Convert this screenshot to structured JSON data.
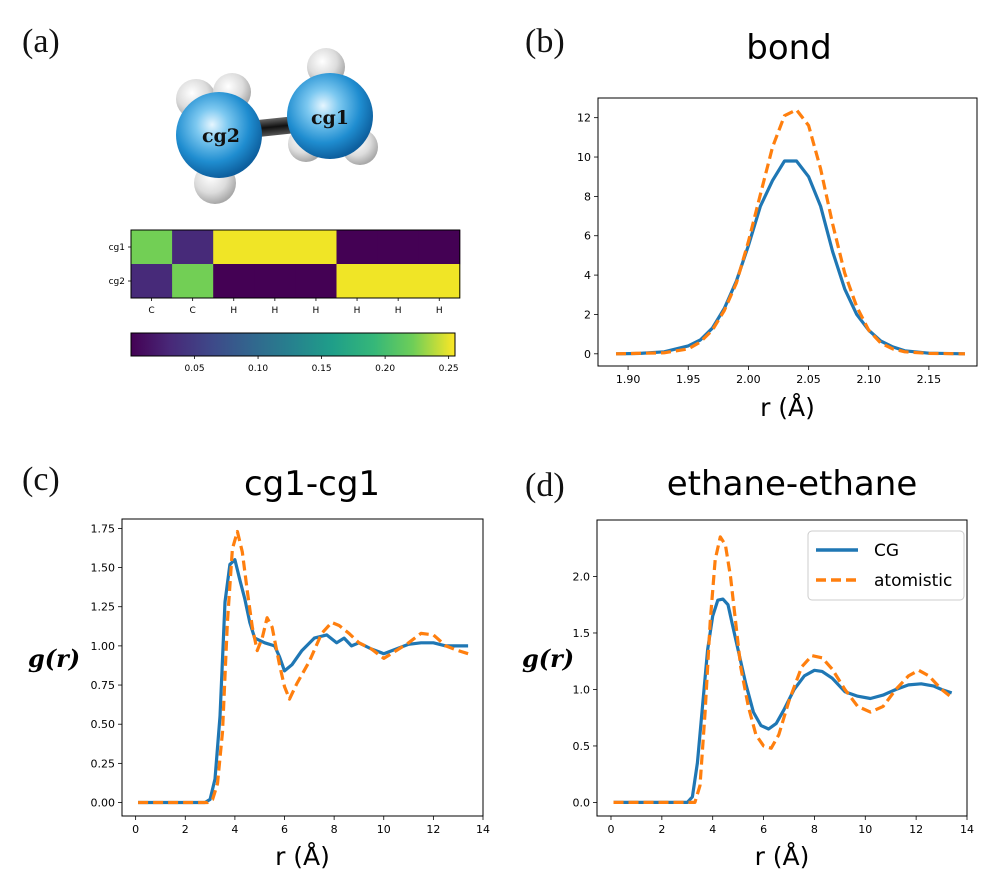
{
  "panels": {
    "a": "(a)",
    "b": "(b)",
    "c": "(c)",
    "d": "(d)"
  },
  "molecule": {
    "atom1": "cg1",
    "atom2": "cg2"
  },
  "heatmap": {
    "rows": [
      "cg1",
      "cg2"
    ],
    "cols": [
      "C",
      "C",
      "H",
      "H",
      "H",
      "H",
      "H",
      "H"
    ],
    "values": [
      [
        0.2,
        0.03,
        0.25,
        0.25,
        0.25,
        0.0,
        0.0,
        0.0
      ],
      [
        0.03,
        0.2,
        0.0,
        0.0,
        0.0,
        0.25,
        0.25,
        0.25
      ]
    ],
    "colorbar_ticks": [
      "0.05",
      "0.10",
      "0.15",
      "0.20",
      "0.25"
    ],
    "colorbar_range": [
      0.0,
      0.255
    ]
  },
  "colors": {
    "cg": "#1f77b4",
    "atomistic": "#ff7f0e"
  },
  "legend": {
    "cg": "CG",
    "atomistic": "atomistic"
  },
  "chart_data": [
    {
      "id": "bond",
      "type": "line",
      "title": "bond",
      "xlabel": "r (Å)",
      "ylabel": "",
      "xlim": [
        1.875,
        2.19
      ],
      "ylim": [
        -0.62,
        13.0
      ],
      "xticks": [
        "1.90",
        "1.95",
        "2.00",
        "2.05",
        "2.10",
        "2.15"
      ],
      "yticks": [
        "0",
        "2",
        "4",
        "6",
        "8",
        "10",
        "12"
      ],
      "series": [
        {
          "name": "CG",
          "x": [
            1.89,
            1.91,
            1.93,
            1.95,
            1.96,
            1.97,
            1.98,
            1.99,
            2.0,
            2.01,
            2.02,
            2.03,
            2.04,
            2.05,
            2.06,
            2.07,
            2.08,
            2.09,
            2.1,
            2.11,
            2.12,
            2.13,
            2.15,
            2.18
          ],
          "y": [
            0,
            0.02,
            0.1,
            0.4,
            0.7,
            1.3,
            2.3,
            3.7,
            5.5,
            7.5,
            8.8,
            9.8,
            9.8,
            9.0,
            7.5,
            5.2,
            3.3,
            2.0,
            1.2,
            0.65,
            0.35,
            0.15,
            0.03,
            0
          ]
        },
        {
          "name": "atomistic",
          "x": [
            1.89,
            1.93,
            1.95,
            1.96,
            1.97,
            1.98,
            1.99,
            2.0,
            2.01,
            2.02,
            2.03,
            2.04,
            2.05,
            2.06,
            2.07,
            2.08,
            2.09,
            2.1,
            2.11,
            2.12,
            2.13,
            2.15,
            2.18
          ],
          "y": [
            0,
            0.05,
            0.25,
            0.6,
            1.2,
            2.2,
            3.6,
            5.7,
            8.1,
            10.5,
            12.1,
            12.4,
            11.6,
            9.4,
            6.6,
            4.1,
            2.4,
            1.2,
            0.55,
            0.25,
            0.1,
            0.02,
            0
          ]
        }
      ]
    },
    {
      "id": "cg1-cg1",
      "type": "line",
      "title": "cg1-cg1",
      "xlabel": "r (Å)",
      "ylabel": "g(r)",
      "xlim": [
        -0.55,
        14.0
      ],
      "ylim": [
        -0.086,
        1.81
      ],
      "xticks": [
        "0",
        "2",
        "4",
        "6",
        "8",
        "10",
        "12",
        "14"
      ],
      "yticks": [
        "0.00",
        "0.25",
        "0.50",
        "0.75",
        "1.00",
        "1.25",
        "1.50",
        "1.75"
      ],
      "series": [
        {
          "name": "CG",
          "x": [
            0.1,
            2.8,
            3.0,
            3.2,
            3.4,
            3.6,
            3.8,
            4.0,
            4.2,
            4.4,
            4.6,
            4.8,
            5.2,
            5.6,
            5.8,
            6.0,
            6.3,
            6.7,
            7.2,
            7.7,
            8.1,
            8.4,
            8.7,
            9.0,
            9.5,
            10.0,
            10.5,
            11.0,
            11.5,
            12.0,
            12.5,
            13.0,
            13.4
          ],
          "y": [
            0,
            0,
            0.02,
            0.15,
            0.55,
            1.28,
            1.52,
            1.55,
            1.42,
            1.3,
            1.15,
            1.05,
            1.02,
            1.0,
            0.93,
            0.84,
            0.88,
            0.97,
            1.05,
            1.07,
            1.02,
            1.05,
            1.0,
            1.02,
            0.98,
            0.95,
            0.98,
            1.01,
            1.02,
            1.02,
            1.0,
            1.0,
            1.0
          ]
        },
        {
          "name": "atomistic",
          "x": [
            0.1,
            2.9,
            3.1,
            3.3,
            3.5,
            3.7,
            3.9,
            4.1,
            4.3,
            4.5,
            4.7,
            4.9,
            5.1,
            5.3,
            5.5,
            5.8,
            6.0,
            6.2,
            6.5,
            7.0,
            7.5,
            7.9,
            8.2,
            8.6,
            9.0,
            9.5,
            10.0,
            10.5,
            11.0,
            11.5,
            12.0,
            12.5,
            13.0,
            13.4
          ],
          "y": [
            0,
            0,
            0.02,
            0.12,
            0.45,
            1.15,
            1.62,
            1.73,
            1.6,
            1.35,
            1.12,
            0.97,
            1.05,
            1.18,
            1.12,
            0.88,
            0.74,
            0.66,
            0.76,
            0.9,
            1.08,
            1.15,
            1.13,
            1.08,
            1.02,
            0.98,
            0.92,
            0.97,
            1.02,
            1.08,
            1.07,
            1.0,
            0.97,
            0.95
          ]
        }
      ]
    },
    {
      "id": "ethane-ethane",
      "type": "line",
      "title": "ethane-ethane",
      "xlabel": "r (Å)",
      "ylabel": "g(r)",
      "xlim": [
        -0.55,
        14.0
      ],
      "ylim": [
        -0.12,
        2.5
      ],
      "xticks": [
        "0",
        "2",
        "4",
        "6",
        "8",
        "10",
        "12",
        "14"
      ],
      "yticks": [
        "0.0",
        "0.5",
        "1.0",
        "1.5",
        "2.0"
      ],
      "series": [
        {
          "name": "CG",
          "x": [
            0.1,
            3.0,
            3.2,
            3.4,
            3.6,
            3.8,
            4.0,
            4.2,
            4.4,
            4.6,
            4.8,
            5.0,
            5.3,
            5.6,
            5.9,
            6.2,
            6.5,
            6.8,
            7.2,
            7.6,
            8.0,
            8.3,
            8.7,
            9.2,
            9.7,
            10.2,
            10.7,
            11.2,
            11.7,
            12.2,
            12.7,
            13.0,
            13.4
          ],
          "y": [
            0,
            0,
            0.05,
            0.35,
            0.85,
            1.35,
            1.65,
            1.79,
            1.8,
            1.75,
            1.55,
            1.35,
            1.05,
            0.8,
            0.68,
            0.65,
            0.7,
            0.82,
            1.0,
            1.12,
            1.17,
            1.16,
            1.1,
            0.98,
            0.94,
            0.92,
            0.95,
            1.0,
            1.04,
            1.05,
            1.03,
            1.0,
            0.97
          ]
        },
        {
          "name": "atomistic",
          "x": [
            0.1,
            3.3,
            3.5,
            3.7,
            3.9,
            4.1,
            4.3,
            4.5,
            4.7,
            4.9,
            5.1,
            5.4,
            5.7,
            6.0,
            6.3,
            6.6,
            7.0,
            7.5,
            7.9,
            8.3,
            8.7,
            9.2,
            9.7,
            10.2,
            10.7,
            11.2,
            11.7,
            12.1,
            12.5,
            13.0,
            13.4
          ],
          "y": [
            0,
            0,
            0.15,
            0.8,
            1.6,
            2.15,
            2.35,
            2.28,
            2.0,
            1.6,
            1.2,
            0.85,
            0.6,
            0.5,
            0.48,
            0.6,
            0.9,
            1.2,
            1.3,
            1.28,
            1.18,
            1.0,
            0.85,
            0.8,
            0.85,
            1.0,
            1.12,
            1.17,
            1.12,
            1.0,
            0.93
          ]
        }
      ]
    }
  ]
}
